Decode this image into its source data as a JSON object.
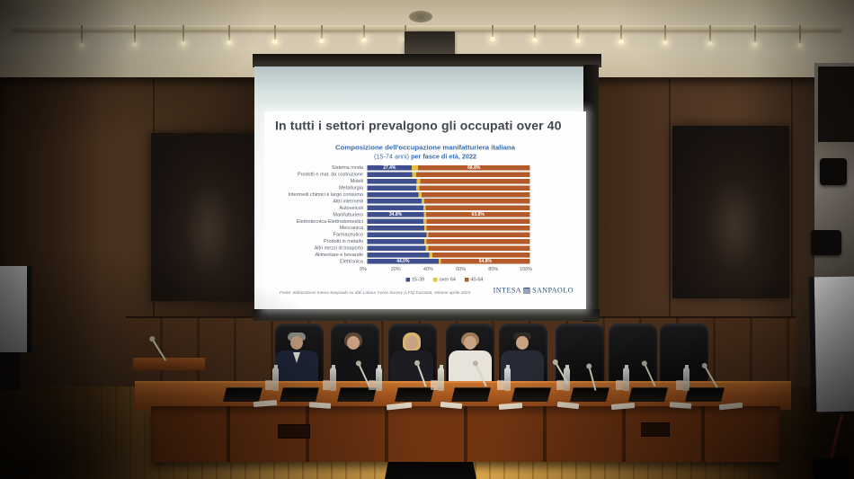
{
  "scene": {
    "people": [
      {
        "label": "panelist-man-gray-hair-dark-suit"
      },
      {
        "label": "panelist-woman-dark-hair-black-top"
      },
      {
        "label": "panelist-woman-blonde-black-top"
      },
      {
        "label": "panelist-woman-white-jacket"
      },
      {
        "label": "panelist-man-dark-hair-dark-suit"
      }
    ],
    "colors": {
      "desk_wood": "#a85820",
      "floor_wood": "#dca94f",
      "wall_wood": "#3a2818",
      "screen_white": "#fdfefd"
    }
  },
  "slide": {
    "title": "In tutti i settori prevalgono gli occupati over 40",
    "subtitle_line1": "Composizione dell'occupazione manifatturiera italiana",
    "subtitle_line2_normal": "(15-74 anni) ",
    "subtitle_line2_bold": "per fasce di età, 2022",
    "source": "Fonte: elaborazioni Intesa Sanpaolo su dati Labour Force Survey (LFS) Eurostat, release aprile 2023",
    "logo_intesa": "INTESA",
    "logo_sanpaolo": "SANPAOLO",
    "title_color": "#42474f",
    "subtitle_color": "#3a6cae"
  },
  "chart_data": {
    "type": "bar",
    "orientation": "horizontal",
    "stacked": true,
    "title": "Composizione dell'occupazione manifatturiera italiana (15-74 anni) per fasce di età, 2022",
    "categories": [
      "Sistema moda",
      "Prodotti e mat. da costruzione",
      "Mobili",
      "Metallurgia",
      "Intermedi chimici e largo consumo",
      "Altri intermedi",
      "Autoveicoli",
      "Manifatturiero",
      "Elettrotecnica-Elettrodomestici",
      "Meccanica",
      "Farmaceutico",
      "Prodotti in metallo",
      "Altri mezzi di trasporto",
      "Alimentare e bevande",
      "Elettronica"
    ],
    "series": [
      {
        "name": "15-39",
        "color": "#3e4e8e",
        "values": [
          27.4,
          27.5,
          30.5,
          30.0,
          31.5,
          33.5,
          34.5,
          34.8,
          34.5,
          35.0,
          36.5,
          35.0,
          36.0,
          38.0,
          44.0
        ]
      },
      {
        "name": "over 64",
        "color": "#e2c043",
        "values": [
          3.8,
          2.5,
          2.0,
          2.0,
          2.0,
          1.5,
          1.5,
          1.4,
          2.0,
          1.5,
          1.0,
          1.5,
          1.5,
          2.0,
          1.2
        ]
      },
      {
        "name": "40-64",
        "color": "#b55a2a",
        "values": [
          68.8,
          70.0,
          67.5,
          68.0,
          66.5,
          65.0,
          64.0,
          63.8,
          63.5,
          63.5,
          62.5,
          63.5,
          62.5,
          60.0,
          54.8
        ]
      }
    ],
    "x_ticks": [
      "0%",
      "20%",
      "40%",
      "60%",
      "80%",
      "100%"
    ],
    "xlim": [
      0,
      100
    ],
    "grid": false,
    "legend_position": "bottom",
    "data_labels_shown": [
      {
        "category_index": 0,
        "first_segment": "27.4%",
        "last_segment": "68.8%"
      },
      {
        "category_index": 7,
        "first_segment": "34.8%",
        "last_segment": "63.8%"
      },
      {
        "category_index": 14,
        "first_segment": "44.0%",
        "last_segment": "54.8%"
      }
    ]
  }
}
